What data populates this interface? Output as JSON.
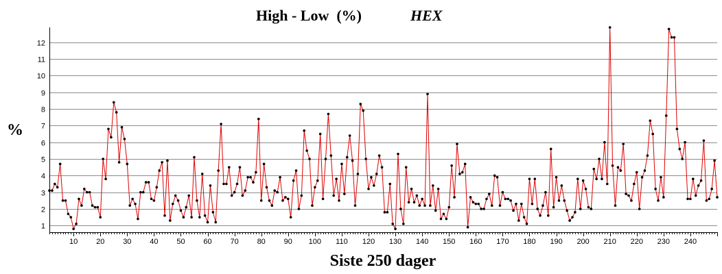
{
  "chart_data": {
    "type": "line",
    "title": "High - Low  (%)",
    "ticker": "HEX",
    "xlabel": "Siste 250 dager",
    "ylabel": "%",
    "xlim": [
      1,
      250
    ],
    "ylim": [
      0.6,
      12.9
    ],
    "yticks": [
      1,
      2,
      3,
      4,
      5,
      6,
      7,
      8,
      9,
      10,
      11,
      12
    ],
    "xticks": [
      10,
      20,
      30,
      40,
      50,
      60,
      70,
      80,
      90,
      100,
      110,
      120,
      130,
      140,
      150,
      160,
      170,
      180,
      190,
      200,
      210,
      220,
      230,
      240
    ],
    "grid": true,
    "line_color": "#e00000",
    "marker_color": "#000000",
    "series": [
      {
        "values": [
          3.1,
          3.1,
          3.5,
          3.3,
          4.7,
          2.5,
          2.5,
          1.7,
          1.5,
          0.8,
          1.1,
          2.6,
          2.2,
          3.2,
          3.0,
          3.0,
          2.2,
          2.1,
          2.1,
          1.5,
          5.0,
          3.8,
          6.8,
          6.3,
          8.4,
          7.8,
          4.8,
          6.9,
          6.2,
          4.7,
          2.2,
          2.6,
          2.3,
          1.4,
          3.0,
          3.0,
          3.6,
          3.6,
          2.6,
          2.5,
          3.3,
          4.3,
          4.8,
          1.6,
          4.9,
          1.3,
          2.3,
          2.8,
          2.5,
          1.9,
          1.5,
          2.1,
          2.8,
          1.5,
          5.1,
          2.5,
          1.5,
          4.1,
          1.6,
          1.2,
          3.4,
          1.8,
          1.2,
          4.3,
          7.1,
          3.5,
          3.5,
          4.5,
          2.8,
          3.0,
          3.5,
          4.5,
          2.8,
          3.1,
          3.9,
          3.9,
          3.6,
          4.2,
          7.4,
          2.5,
          4.7,
          3.3,
          2.5,
          2.2,
          3.1,
          3.0,
          3.9,
          2.5,
          2.7,
          2.6,
          1.5,
          3.7,
          4.3,
          2.0,
          2.8,
          6.7,
          5.5,
          5.0,
          2.2,
          3.3,
          3.7,
          6.5,
          2.6,
          5.0,
          7.7,
          5.2,
          2.8,
          3.8,
          2.5,
          4.7,
          2.9,
          5.1,
          6.4,
          4.9,
          2.2,
          4.1,
          8.3,
          7.9,
          5.0,
          3.2,
          3.9,
          3.4,
          4.1,
          5.2,
          4.5,
          1.8,
          1.8,
          3.5,
          1.1,
          0.8,
          5.3,
          2.0,
          1.1,
          4.5,
          2.4,
          3.2,
          2.4,
          2.8,
          2.2,
          2.6,
          2.2,
          8.9,
          2.2,
          3.4,
          1.9,
          3.2,
          1.4,
          1.7,
          1.4,
          2.1,
          4.6,
          2.7,
          5.9,
          4.1,
          4.2,
          4.7,
          0.9,
          2.7,
          2.4,
          2.3,
          2.3,
          2.0,
          2.0,
          2.6,
          2.9,
          2.2,
          4.0,
          3.9,
          2.2,
          3.0,
          2.6,
          2.6,
          2.5,
          1.9,
          2.3,
          1.3,
          2.3,
          1.5,
          1.1,
          3.8,
          2.3,
          3.8,
          2.0,
          1.6,
          2.2,
          3.0,
          1.6,
          5.6,
          2.1,
          3.9,
          2.5,
          3.4,
          2.5,
          1.9,
          1.3,
          1.5,
          1.8,
          3.8,
          2.0,
          3.7,
          3.2,
          2.1,
          2.0,
          4.4,
          3.8,
          5.0,
          3.8,
          6.0,
          3.5,
          12.9,
          4.6,
          2.2,
          4.5,
          4.3,
          5.9,
          2.9,
          2.8,
          2.5,
          3.5,
          4.2,
          2.0,
          3.9,
          4.3,
          5.2,
          7.3,
          6.5,
          3.2,
          2.5,
          3.9,
          2.7,
          7.6,
          12.8,
          12.3,
          12.3,
          6.8,
          5.6,
          5.0,
          6.0,
          2.6,
          2.6,
          3.8,
          2.8,
          3.4,
          3.7,
          6.1,
          2.5,
          2.6,
          3.2,
          4.9,
          2.7
        ]
      }
    ]
  }
}
